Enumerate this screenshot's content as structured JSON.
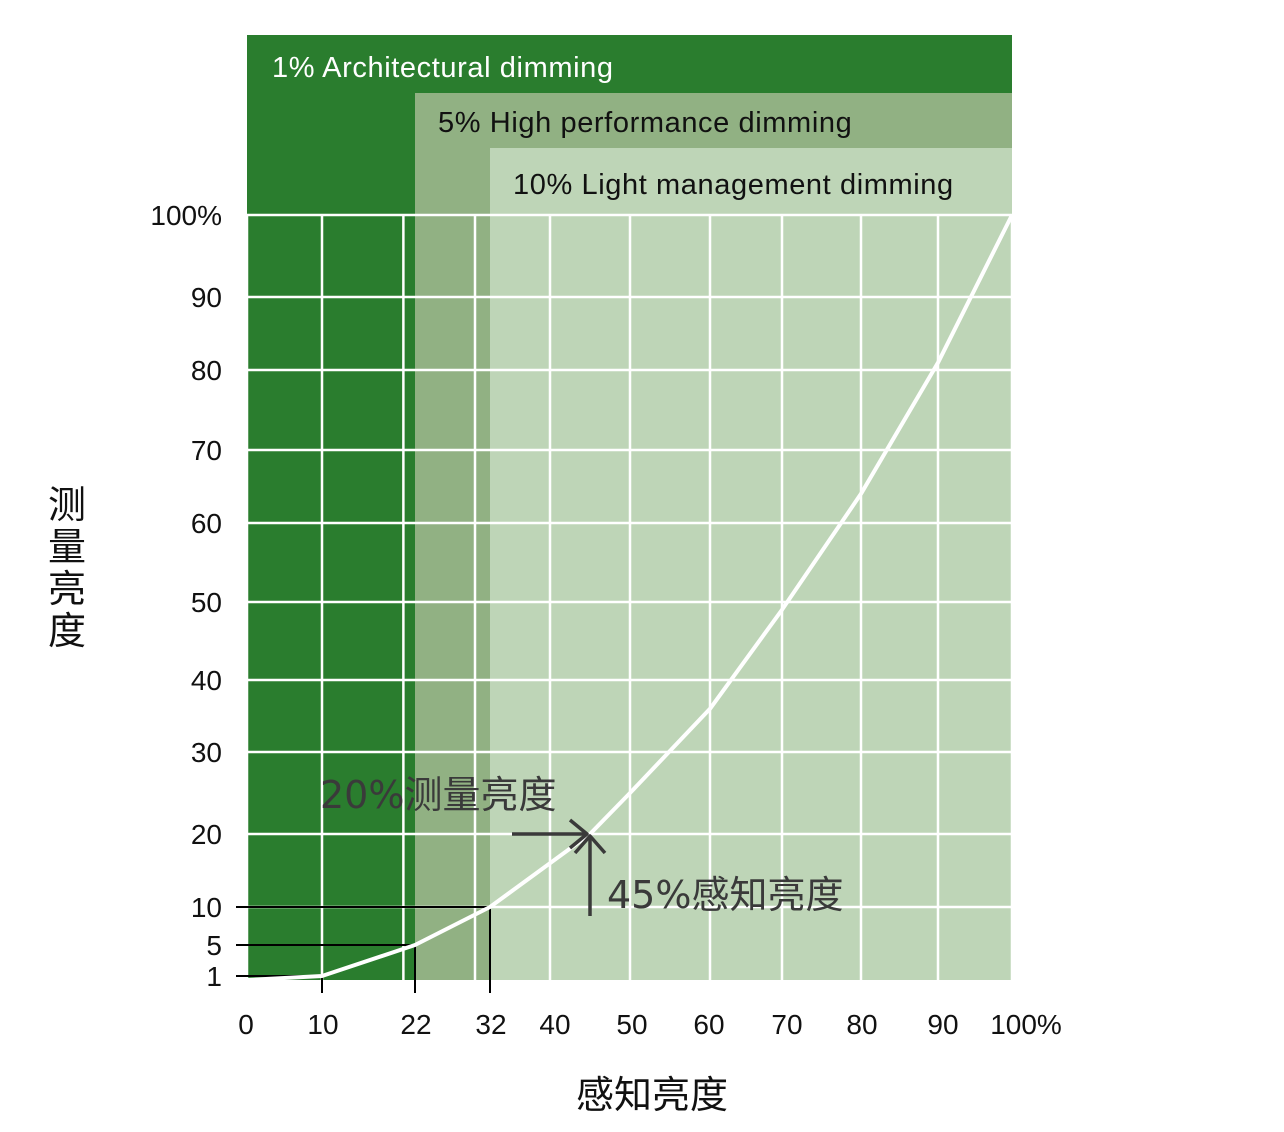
{
  "chart_data": {
    "type": "line",
    "xlabel": "感知亮度",
    "ylabel": "测量亮度",
    "x_tick_labels": [
      "0",
      "10",
      "22",
      "32",
      "40",
      "50",
      "60",
      "70",
      "80",
      "90",
      "100%"
    ],
    "y_tick_labels": [
      "1",
      "5",
      "10",
      "20",
      "30",
      "40",
      "50",
      "60",
      "70",
      "80",
      "90",
      "100%"
    ],
    "xlim": [
      0,
      100
    ],
    "ylim": [
      0,
      100
    ],
    "grid": true,
    "series": [
      {
        "x": [
          0,
          10,
          22,
          32,
          45,
          50,
          60,
          70,
          80,
          90,
          100
        ],
        "y": [
          0,
          1,
          5,
          10,
          20,
          25,
          36,
          49,
          64,
          81,
          100
        ]
      }
    ],
    "bands": [
      {
        "label": "1% Architectural dimming",
        "x_start": 0,
        "min_level": 1,
        "color": "#2a7d2e"
      },
      {
        "label": "5% High performance dimming",
        "x_start": 22,
        "min_level": 5,
        "color": "#91b183"
      },
      {
        "label": "10% Light management dimming",
        "x_start": 32,
        "min_level": 10,
        "color": "#bed5b7"
      }
    ],
    "reference_points": [
      {
        "x": 10,
        "y": 1
      },
      {
        "x": 22,
        "y": 5
      },
      {
        "x": 32,
        "y": 10
      }
    ],
    "annotations": [
      {
        "text": "20%测量亮度",
        "x": 45,
        "y": 20
      },
      {
        "text": "45%感知亮度",
        "x": 45,
        "y": 20
      }
    ]
  }
}
